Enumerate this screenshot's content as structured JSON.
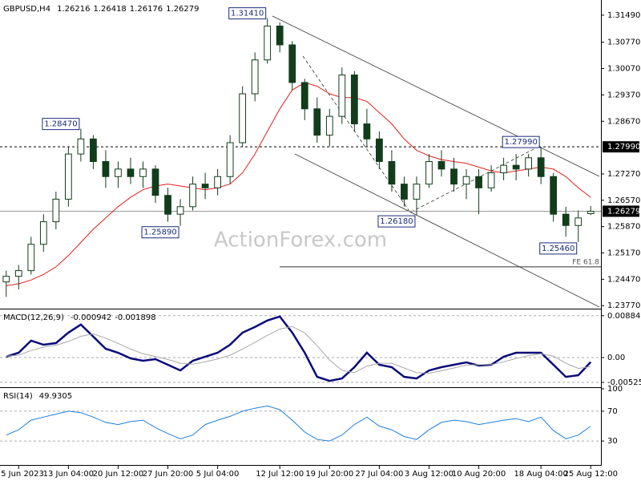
{
  "chart_data": [
    {
      "type": "candlestick",
      "title": "GBPUSD,H4",
      "header_values": [
        1.26216,
        1.26418,
        1.26176,
        1.26279
      ],
      "categories": [
        null,
        "5 Jun 2023",
        null,
        null,
        null,
        "13 Jun 04:00",
        null,
        null,
        null,
        "20 Jun 12:00",
        null,
        null,
        null,
        "27 Jun 20:00",
        null,
        null,
        null,
        "5 Jul 04:00",
        null,
        null,
        null,
        null,
        "12 Jul 12:00",
        null,
        null,
        null,
        "19 Jul 20:00",
        null,
        null,
        null,
        "27 Jul 04:00",
        null,
        null,
        null,
        "3 Aug 12:00",
        null,
        null,
        null,
        "10 Aug 20:00",
        null,
        null,
        null,
        null,
        "18 Aug 04:00",
        null,
        null,
        null,
        "25 Aug 12:00"
      ],
      "open": [
        1.244,
        1.2455,
        1.247,
        1.254,
        1.26,
        1.266,
        1.278,
        1.282,
        1.276,
        1.272,
        1.274,
        1.272,
        1.274,
        1.267,
        1.262,
        1.264,
        1.27,
        1.269,
        1.272,
        1.281,
        1.294,
        1.303,
        1.312,
        1.307,
        1.297,
        1.29,
        1.283,
        1.288,
        1.299,
        1.286,
        1.282,
        1.276,
        1.27,
        1.266,
        1.27,
        1.276,
        1.274,
        1.27,
        1.272,
        1.269,
        1.273,
        1.275,
        1.274,
        1.277,
        1.272,
        1.262,
        1.259,
        1.26216
      ],
      "high": [
        1.247,
        1.2485,
        1.256,
        1.262,
        1.268,
        1.28,
        1.2847,
        1.283,
        1.279,
        1.276,
        1.277,
        1.276,
        1.275,
        1.269,
        1.266,
        1.272,
        1.273,
        1.274,
        1.283,
        1.296,
        1.305,
        1.3141,
        1.313,
        1.308,
        1.298,
        1.293,
        1.29,
        1.301,
        1.3,
        1.29,
        1.284,
        1.279,
        1.272,
        1.272,
        1.278,
        1.279,
        1.277,
        1.274,
        1.274,
        1.275,
        1.277,
        1.278,
        1.278,
        1.2799,
        1.273,
        1.264,
        1.263,
        1.26418
      ],
      "low": [
        1.24,
        1.242,
        1.246,
        1.252,
        1.258,
        1.264,
        1.276,
        1.274,
        1.269,
        1.269,
        1.27,
        1.269,
        1.265,
        1.26,
        1.2589,
        1.263,
        1.266,
        1.267,
        1.27,
        1.28,
        1.292,
        1.302,
        1.305,
        1.295,
        1.287,
        1.281,
        1.28,
        1.286,
        1.284,
        1.28,
        1.274,
        1.268,
        1.264,
        1.2618,
        1.269,
        1.272,
        1.268,
        1.266,
        1.262,
        1.268,
        1.271,
        1.271,
        1.272,
        1.27,
        1.26,
        1.256,
        1.2546,
        1.26176
      ],
      "close": [
        1.2455,
        1.247,
        1.254,
        1.26,
        1.266,
        1.278,
        1.282,
        1.276,
        1.272,
        1.274,
        1.272,
        1.274,
        1.267,
        1.262,
        1.264,
        1.27,
        1.269,
        1.272,
        1.281,
        1.294,
        1.303,
        1.312,
        1.307,
        1.297,
        1.29,
        1.283,
        1.288,
        1.299,
        1.286,
        1.282,
        1.276,
        1.27,
        1.266,
        1.27,
        1.276,
        1.274,
        1.27,
        1.272,
        1.269,
        1.273,
        1.275,
        1.274,
        1.277,
        1.272,
        1.262,
        1.259,
        1.261,
        1.26279
      ],
      "color": "#123d1a",
      "ma": {
        "color": "#e0201d",
        "values": [
          1.243,
          1.2435,
          1.2445,
          1.246,
          1.248,
          1.251,
          1.2545,
          1.258,
          1.261,
          1.264,
          1.2665,
          1.2685,
          1.2695,
          1.27,
          1.2695,
          1.269,
          1.2685,
          1.269,
          1.27,
          1.273,
          1.278,
          1.284,
          1.29,
          1.295,
          1.297,
          1.296,
          1.294,
          1.293,
          1.293,
          1.292,
          1.289,
          1.286,
          1.282,
          1.279,
          1.2775,
          1.2765,
          1.276,
          1.2755,
          1.2745,
          1.2735,
          1.273,
          1.2735,
          1.274,
          1.2745,
          1.274,
          1.272,
          1.269,
          1.2665
        ]
      },
      "ylim": [
        1.2369,
        1.3185
      ],
      "yticks": [
        {
          "value": 1.3149,
          "label": "1.31490"
        },
        {
          "value": 1.3077,
          "label": "1.30770"
        },
        {
          "value": 1.3007,
          "label": "1.30070"
        },
        {
          "value": 1.2937,
          "label": "1.29370"
        },
        {
          "value": 1.2867,
          "label": "1.28670"
        },
        {
          "value": 1.2727,
          "label": "1.27270"
        },
        {
          "value": 1.2657,
          "label": "1.26570"
        },
        {
          "value": 1.2587,
          "label": "1.25870"
        },
        {
          "value": 1.2517,
          "label": "1.25170"
        },
        {
          "value": 1.2447,
          "label": "1.24470"
        },
        {
          "value": 1.2377,
          "label": "1.23770"
        }
      ],
      "hline": {
        "value": 1.2799,
        "label": "1.27990"
      },
      "current": {
        "value": 1.26279,
        "label": "1.26279"
      },
      "annotations": [
        {
          "value": 1.3141,
          "label": "1.31410"
        },
        {
          "value": 1.2847,
          "label": "1.28470"
        },
        {
          "value": 1.2589,
          "label": "1.25890"
        },
        {
          "value": 1.2618,
          "label": "1.26180"
        },
        {
          "value": 1.2799,
          "label": "1.27990"
        },
        {
          "value": 1.2546,
          "label": "1.25460"
        }
      ],
      "fe": {
        "value": 1.248,
        "label": "FE 61.8"
      },
      "watermark": "ActionForex.com"
    },
    {
      "type": "line",
      "title": "MACD(12,26,9)",
      "header_values": [
        -0.000942,
        -0.001898
      ],
      "series": [
        {
          "color": "#0a0a7a",
          "values": [
            0.00017,
            0.00102,
            0.00357,
            0.00272,
            0.00306,
            0.00527,
            0.00698,
            0.00442,
            0.00187,
            0.00102,
            -0.00017,
            -0.00068,
            -0.00034,
            -0.00153,
            -0.00272,
            -0.00068,
            0.00017,
            0.00102,
            0.00272,
            0.00527,
            0.00646,
            0.00783,
            0.00868,
            0.00527,
            0.00102,
            -0.00408,
            -0.00493,
            -0.00442,
            -0.00204,
            0.00102,
            -0.00153,
            -0.00204,
            -0.00408,
            -0.00442,
            -0.00272,
            -0.00204,
            -0.00153,
            -0.00102,
            -0.0017,
            -0.00153,
            0.00017,
            0.00102,
            0.00102,
            0.00102,
            -0.00153,
            -0.00408,
            -0.00374,
            -0.000942
          ]
        },
        {
          "color": "#a8a8a8",
          "values": [
            0.0003,
            0.0005,
            0.0015,
            0.0022,
            0.0026,
            0.0034,
            0.0045,
            0.005,
            0.0041,
            0.003,
            0.0018,
            0.0008,
            0.0002,
            -0.0004,
            -0.0012,
            -0.0014,
            -0.0009,
            -0.0003,
            0.0005,
            0.0018,
            0.0032,
            0.0047,
            0.006,
            0.0066,
            0.0052,
            0.0025,
            -0.0005,
            -0.0027,
            -0.0032,
            -0.0018,
            -0.0012,
            -0.0012,
            -0.0022,
            -0.0032,
            -0.0033,
            -0.0028,
            -0.0022,
            -0.0016,
            -0.0015,
            -0.0015,
            -0.0009,
            -0.0002,
            0.0004,
            0.0008,
            0.0003,
            -0.0012,
            -0.0023,
            -0.001898
          ]
        }
      ],
      "ylim": [
        -0.0061,
        0.01
      ],
      "yticks": [
        0.008846,
        {
          "value": 0,
          "label": "0.00"
        },
        -0.005252
      ]
    },
    {
      "type": "line",
      "title": "RSI(14)",
      "header_values": [
        49.9305
      ],
      "series": [
        {
          "color": "#1e7fe0",
          "values": [
            38,
            45,
            58,
            62,
            66,
            70,
            68,
            62,
            55,
            52,
            56,
            58,
            48,
            40,
            33,
            38,
            52,
            58,
            63,
            70,
            74,
            77,
            72,
            58,
            42,
            32,
            30,
            38,
            52,
            62,
            50,
            45,
            36,
            32,
            45,
            55,
            58,
            56,
            52,
            55,
            58,
            60,
            56,
            62,
            44,
            33,
            38,
            49.9305
          ]
        }
      ],
      "ylim": [
        0,
        100
      ],
      "yticks": [
        100,
        70,
        30
      ]
    }
  ]
}
